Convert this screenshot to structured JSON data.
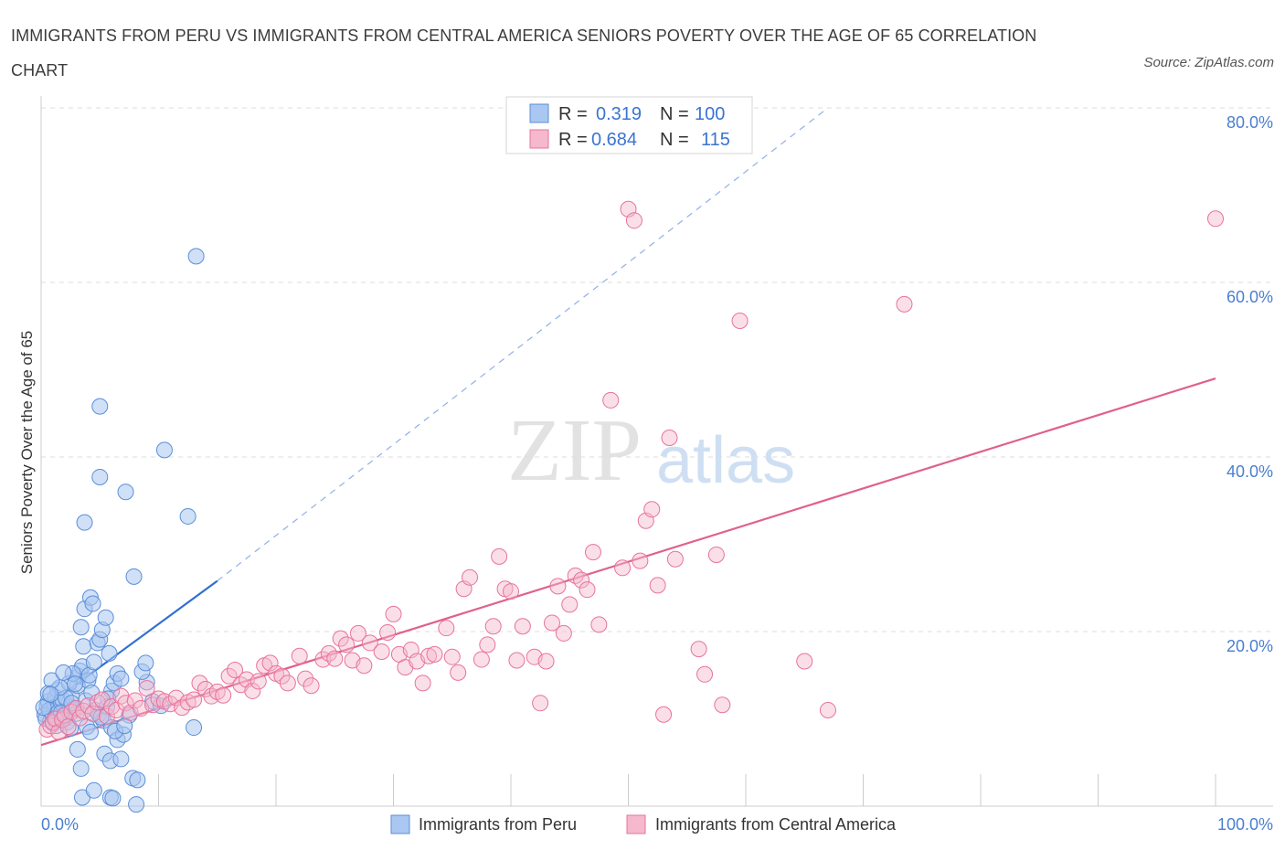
{
  "title": "IMMIGRANTS FROM PERU VS IMMIGRANTS FROM CENTRAL AMERICA SENIORS POVERTY OVER THE AGE OF 65 CORRELATION CHART",
  "source": "Source: ZipAtlas.com",
  "watermark": {
    "zip": "ZIP",
    "atlas": "atlas"
  },
  "colors": {
    "peru": "#5b8fd9",
    "peru_fill": "#a9c7f0",
    "central": "#e8739c",
    "central_fill": "#f5b8cc",
    "tick": "#4a7fd0",
    "grid": "#dddddd"
  },
  "legend": {
    "rows": [
      {
        "r_label": "R =",
        "r_value": "0.319",
        "n_label": "N =",
        "n_value": "100"
      },
      {
        "r_label": "R =",
        "r_value": "0.684",
        "n_label": "N =",
        "n_value": "115"
      }
    ]
  },
  "chart_data": {
    "type": "scatter",
    "title": "IMMIGRANTS FROM PERU VS IMMIGRANTS FROM CENTRAL AMERICA SENIORS POVERTY OVER THE AGE OF 65 CORRELATION CHART",
    "xlabel": "",
    "ylabel": "Seniors Poverty Over the Age of 65",
    "xlim": [
      0,
      100
    ],
    "ylim": [
      0,
      80
    ],
    "x_tick_labels": [
      "0.0%",
      "100.0%"
    ],
    "y_ticks": [
      20,
      40,
      60,
      80
    ],
    "y_tick_labels": [
      "20.0%",
      "40.0%",
      "60.0%",
      "80.0%"
    ],
    "grid": true,
    "legend_position": "top-center",
    "series": [
      {
        "name": "Immigrants from Peru",
        "color": "#5b8fd9",
        "R": 0.319,
        "N": 100,
        "trend": {
          "x0": 0,
          "y0": 11.0,
          "x1": 15,
          "y1": 25.8,
          "dash_to_x": 67,
          "dash_to_y": 80
        },
        "points": [
          [
            0.3,
            10.5
          ],
          [
            0.5,
            11.5
          ],
          [
            0.6,
            12.0
          ],
          [
            0.8,
            9.8
          ],
          [
            1.0,
            10.2
          ],
          [
            1.1,
            11.8
          ],
          [
            1.2,
            12.5
          ],
          [
            1.4,
            13.3
          ],
          [
            0.4,
            10.0
          ],
          [
            0.7,
            11.0
          ],
          [
            1.5,
            10.8
          ],
          [
            1.7,
            11.9
          ],
          [
            1.8,
            12.2
          ],
          [
            2.0,
            10.3
          ],
          [
            2.2,
            9.6
          ],
          [
            2.3,
            10.9
          ],
          [
            2.5,
            11.4
          ],
          [
            2.6,
            12.6
          ],
          [
            2.8,
            11.2
          ],
          [
            3.0,
            10.6
          ],
          [
            3.1,
            13.8
          ],
          [
            3.2,
            14.9
          ],
          [
            3.3,
            15.5
          ],
          [
            3.5,
            16.0
          ],
          [
            3.6,
            18.3
          ],
          [
            2.4,
            14.1
          ],
          [
            2.7,
            15.2
          ],
          [
            3.8,
            12.1
          ],
          [
            4.0,
            14.4
          ],
          [
            4.1,
            15.0
          ],
          [
            3.4,
            20.5
          ],
          [
            3.7,
            22.6
          ],
          [
            4.2,
            23.9
          ],
          [
            4.4,
            23.2
          ],
          [
            4.5,
            16.5
          ],
          [
            4.8,
            18.7
          ],
          [
            5.0,
            19.1
          ],
          [
            5.2,
            20.2
          ],
          [
            5.5,
            21.6
          ],
          [
            5.8,
            17.5
          ],
          [
            4.6,
            11.0
          ],
          [
            4.9,
            10.5
          ],
          [
            5.3,
            9.8
          ],
          [
            5.6,
            11.4
          ],
          [
            6.0,
            13.2
          ],
          [
            6.2,
            14.1
          ],
          [
            6.5,
            15.2
          ],
          [
            6.8,
            14.6
          ],
          [
            6.0,
            9.0
          ],
          [
            6.5,
            7.6
          ],
          [
            7.0,
            8.2
          ],
          [
            5.4,
            6.0
          ],
          [
            5.9,
            5.2
          ],
          [
            6.8,
            5.4
          ],
          [
            7.8,
            3.2
          ],
          [
            8.2,
            3.0
          ],
          [
            9.0,
            14.2
          ],
          [
            8.6,
            15.4
          ],
          [
            8.9,
            16.4
          ],
          [
            7.9,
            26.3
          ],
          [
            10.5,
            40.8
          ],
          [
            12.5,
            33.2
          ],
          [
            13.0,
            9.0
          ],
          [
            13.2,
            63.0
          ],
          [
            7.2,
            36.0
          ],
          [
            3.7,
            32.5
          ],
          [
            5.0,
            37.7
          ],
          [
            5.0,
            45.8
          ],
          [
            3.1,
            6.5
          ],
          [
            3.4,
            4.3
          ],
          [
            3.5,
            1.0
          ],
          [
            4.5,
            1.8
          ],
          [
            5.9,
            1.0
          ],
          [
            6.1,
            0.9
          ],
          [
            8.1,
            0.2
          ],
          [
            2.1,
            12.4
          ],
          [
            1.6,
            13.6
          ],
          [
            0.9,
            14.4
          ],
          [
            1.3,
            9.2
          ],
          [
            0.2,
            11.3
          ],
          [
            0.6,
            12.9
          ],
          [
            1.9,
            15.3
          ],
          [
            2.9,
            14.0
          ],
          [
            4.3,
            13.0
          ],
          [
            5.1,
            10.2
          ],
          [
            5.7,
            12.3
          ],
          [
            6.3,
            8.6
          ],
          [
            7.5,
            10.4
          ],
          [
            7.1,
            9.2
          ],
          [
            9.5,
            12.0
          ],
          [
            10.2,
            11.5
          ],
          [
            1.0,
            9.5
          ],
          [
            1.3,
            10.0
          ],
          [
            2.1,
            10.1
          ],
          [
            2.5,
            8.9
          ],
          [
            3.9,
            9.1
          ],
          [
            4.2,
            8.5
          ],
          [
            0.8,
            12.8
          ],
          [
            1.7,
            10.7
          ],
          [
            2.6,
            11.8
          ]
        ]
      },
      {
        "name": "Immigrants from Central America",
        "color": "#e8739c",
        "R": 0.684,
        "N": 115,
        "trend": {
          "x0": 0,
          "y0": 7.0,
          "x1": 100,
          "y1": 49.0
        },
        "points": [
          [
            0.5,
            8.8
          ],
          [
            0.8,
            9.2
          ],
          [
            1.0,
            9.6
          ],
          [
            1.2,
            10.0
          ],
          [
            1.5,
            8.5
          ],
          [
            1.8,
            9.9
          ],
          [
            2.0,
            10.4
          ],
          [
            2.3,
            9.1
          ],
          [
            2.6,
            10.8
          ],
          [
            3.0,
            11.2
          ],
          [
            3.3,
            10.1
          ],
          [
            3.6,
            10.9
          ],
          [
            4.0,
            11.5
          ],
          [
            4.4,
            10.6
          ],
          [
            4.8,
            11.9
          ],
          [
            5.2,
            12.2
          ],
          [
            5.6,
            10.3
          ],
          [
            6.0,
            11.4
          ],
          [
            6.4,
            11.0
          ],
          [
            6.8,
            12.6
          ],
          [
            7.2,
            11.8
          ],
          [
            7.6,
            10.7
          ],
          [
            8.0,
            12.1
          ],
          [
            8.5,
            11.2
          ],
          [
            9.0,
            13.5
          ],
          [
            9.5,
            11.6
          ],
          [
            10.0,
            12.3
          ],
          [
            10.5,
            12.0
          ],
          [
            11.0,
            11.7
          ],
          [
            11.5,
            12.4
          ],
          [
            12.0,
            11.3
          ],
          [
            12.5,
            11.9
          ],
          [
            13.0,
            12.2
          ],
          [
            13.5,
            14.1
          ],
          [
            14.0,
            13.4
          ],
          [
            14.5,
            12.6
          ],
          [
            15.0,
            13.1
          ],
          [
            15.5,
            12.7
          ],
          [
            16.0,
            14.9
          ],
          [
            16.5,
            15.6
          ],
          [
            17.0,
            13.9
          ],
          [
            17.5,
            14.5
          ],
          [
            18.0,
            13.2
          ],
          [
            18.5,
            14.3
          ],
          [
            19.0,
            16.1
          ],
          [
            19.5,
            16.4
          ],
          [
            20.0,
            15.2
          ],
          [
            20.5,
            14.9
          ],
          [
            21.0,
            14.1
          ],
          [
            22.0,
            17.2
          ],
          [
            22.5,
            14.6
          ],
          [
            23.0,
            13.8
          ],
          [
            24.0,
            16.8
          ],
          [
            24.5,
            17.5
          ],
          [
            25.0,
            16.9
          ],
          [
            25.5,
            19.2
          ],
          [
            26.0,
            18.5
          ],
          [
            26.5,
            16.7
          ],
          [
            27.0,
            19.8
          ],
          [
            27.5,
            16.1
          ],
          [
            28.0,
            18.7
          ],
          [
            29.0,
            17.7
          ],
          [
            29.5,
            19.9
          ],
          [
            30.0,
            22.0
          ],
          [
            30.5,
            17.4
          ],
          [
            31.0,
            15.9
          ],
          [
            31.5,
            17.9
          ],
          [
            32.0,
            16.6
          ],
          [
            32.5,
            14.1
          ],
          [
            33.0,
            17.2
          ],
          [
            33.5,
            17.4
          ],
          [
            34.5,
            20.4
          ],
          [
            35.0,
            17.1
          ],
          [
            35.5,
            15.3
          ],
          [
            36.0,
            24.9
          ],
          [
            36.5,
            26.2
          ],
          [
            37.5,
            16.8
          ],
          [
            38.0,
            18.5
          ],
          [
            38.5,
            20.6
          ],
          [
            39.0,
            28.6
          ],
          [
            39.5,
            24.9
          ],
          [
            40.0,
            24.6
          ],
          [
            40.5,
            16.7
          ],
          [
            41.0,
            20.6
          ],
          [
            42.0,
            17.1
          ],
          [
            42.5,
            11.8
          ],
          [
            43.0,
            16.6
          ],
          [
            43.5,
            21.0
          ],
          [
            44.0,
            25.2
          ],
          [
            44.5,
            19.8
          ],
          [
            45.0,
            23.1
          ],
          [
            45.5,
            26.4
          ],
          [
            46.0,
            25.9
          ],
          [
            46.5,
            24.8
          ],
          [
            47.0,
            29.1
          ],
          [
            47.5,
            20.8
          ],
          [
            48.5,
            46.5
          ],
          [
            49.5,
            27.3
          ],
          [
            50.0,
            68.4
          ],
          [
            50.5,
            67.1
          ],
          [
            51.0,
            28.1
          ],
          [
            51.5,
            32.7
          ],
          [
            52.0,
            34.0
          ],
          [
            52.5,
            25.3
          ],
          [
            53.0,
            10.5
          ],
          [
            53.5,
            42.2
          ],
          [
            54.0,
            28.3
          ],
          [
            56.0,
            18.0
          ],
          [
            56.5,
            15.1
          ],
          [
            57.5,
            28.8
          ],
          [
            58.0,
            11.6
          ],
          [
            59.5,
            55.6
          ],
          [
            65.0,
            16.6
          ],
          [
            67.0,
            11.0
          ],
          [
            73.5,
            57.5
          ],
          [
            100.0,
            67.3
          ]
        ]
      }
    ]
  },
  "bottom_legend": [
    {
      "label": "Immigrants from Peru"
    },
    {
      "label": "Immigrants from Central America"
    }
  ]
}
